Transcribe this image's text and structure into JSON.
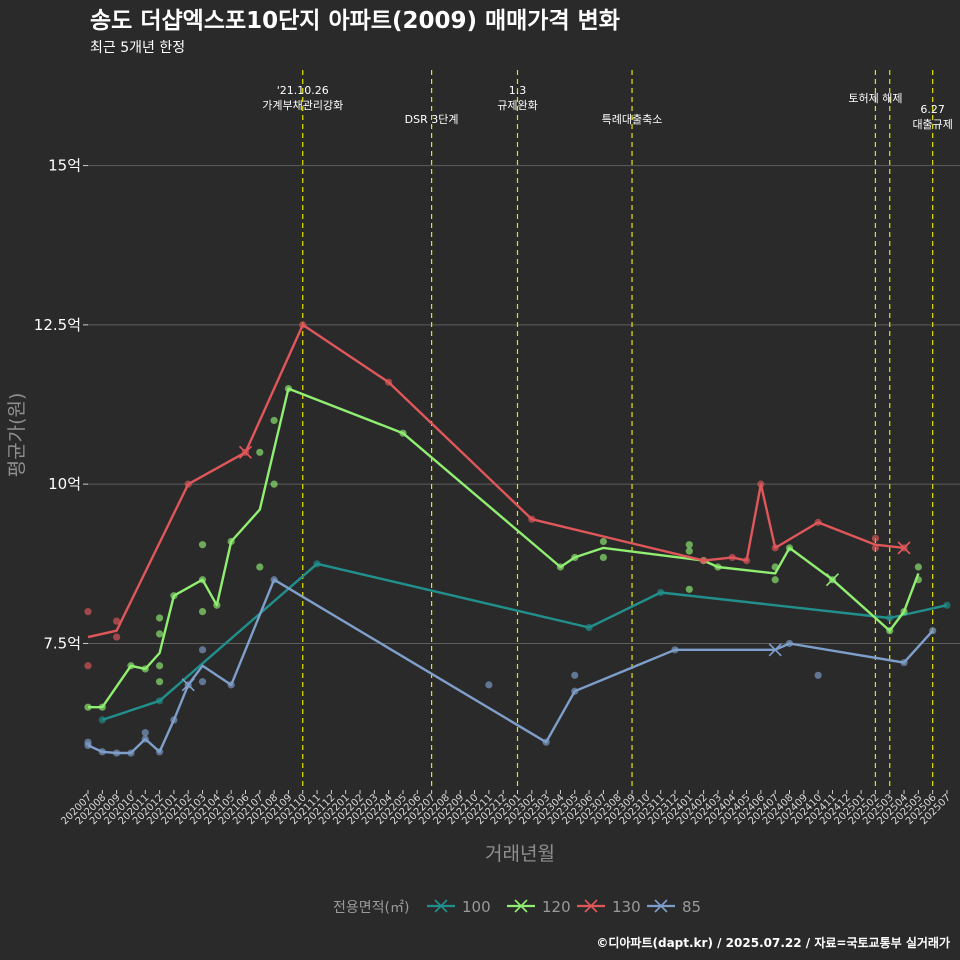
{
  "chart_data": {
    "type": "line",
    "title": "송도 더샵엑스포10단지 아파트(2009) 매매가격 변화",
    "subtitle": "최근 5개년 한정",
    "xlabel": "거래년월",
    "ylabel": "평균가(원)",
    "y_ticks": [
      {
        "value": 7.5,
        "label": "7.5억"
      },
      {
        "value": 10,
        "label": "10억"
      },
      {
        "value": 12.5,
        "label": "12.5억"
      },
      {
        "value": 15,
        "label": "15억"
      }
    ],
    "ylim": [
      5.2,
      16.5
    ],
    "grid": true,
    "x_categories": [
      "202007",
      "202008",
      "202009",
      "202010",
      "202011",
      "202012",
      "202101",
      "202102",
      "202103",
      "202104",
      "202105",
      "202106",
      "202107",
      "202108",
      "202109",
      "202110",
      "202111",
      "202112",
      "202201",
      "202202",
      "202203",
      "202204",
      "202205",
      "202206",
      "202207",
      "202208",
      "202209",
      "202210",
      "202211",
      "202212",
      "202301",
      "202302",
      "202303",
      "202304",
      "202305",
      "202306",
      "202307",
      "202308",
      "202309",
      "202310",
      "202311",
      "202312",
      "202401",
      "202402",
      "202403",
      "202404",
      "202405",
      "202406",
      "202407",
      "202408",
      "202409",
      "202410",
      "202411",
      "202412",
      "202501",
      "202502",
      "202503",
      "202504",
      "202505",
      "202506",
      "202507"
    ],
    "legend": {
      "title": "전용면적(㎡)",
      "position": "bottom"
    },
    "series": [
      {
        "name": "100",
        "color": "#21908c",
        "line": [
          [
            "202008",
            6.3
          ],
          [
            "202012",
            6.6
          ],
          [
            "202111",
            8.75
          ],
          [
            "202306",
            7.75
          ],
          [
            "202311",
            8.3
          ],
          [
            "202503",
            7.9
          ],
          [
            "202507",
            8.1
          ]
        ],
        "points": [
          [
            "202008",
            6.3
          ],
          [
            "202012",
            6.6
          ],
          [
            "202111",
            8.75
          ],
          [
            "202306",
            7.75
          ],
          [
            "202311",
            8.3
          ],
          [
            "202503",
            7.9
          ],
          [
            "202507",
            8.1
          ]
        ]
      },
      {
        "name": "120",
        "color": "#90ee71",
        "line": [
          [
            "202007",
            6.5
          ],
          [
            "202008",
            6.5
          ],
          [
            "202010",
            7.15
          ],
          [
            "202011",
            7.1
          ],
          [
            "202012",
            7.35
          ],
          [
            "202101",
            8.25
          ],
          [
            "202103",
            8.5
          ],
          [
            "202104",
            8.1
          ],
          [
            "202105",
            9.1
          ],
          [
            "202107",
            9.6
          ],
          [
            "202109",
            11.5
          ],
          [
            "202205",
            10.8
          ],
          [
            "202304",
            8.7
          ],
          [
            "202305",
            8.85
          ],
          [
            "202307",
            9.0
          ],
          [
            "202402",
            8.8
          ],
          [
            "202403",
            8.7
          ],
          [
            "202407",
            8.6
          ],
          [
            "202408",
            9.0
          ],
          [
            "202411",
            8.5
          ],
          [
            "202503",
            7.7
          ],
          [
            "202504",
            8.0
          ],
          [
            "202505",
            8.6
          ]
        ],
        "points": [
          [
            "202007",
            6.5
          ],
          [
            "202008",
            6.5
          ],
          [
            "202010",
            7.15
          ],
          [
            "202011",
            7.1
          ],
          [
            "202012",
            6.9
          ],
          [
            "202012",
            7.15
          ],
          [
            "202012",
            7.65
          ],
          [
            "202012",
            7.9
          ],
          [
            "202101",
            8.25
          ],
          [
            "202103",
            8.0
          ],
          [
            "202103",
            8.5
          ],
          [
            "202103",
            9.05
          ],
          [
            "202104",
            8.1
          ],
          [
            "202105",
            9.1
          ],
          [
            "202107",
            8.7
          ],
          [
            "202107",
            10.5
          ],
          [
            "202108",
            10.0
          ],
          [
            "202108",
            11.0
          ],
          [
            "202109",
            11.5
          ],
          [
            "202205",
            10.8
          ],
          [
            "202304",
            8.7
          ],
          [
            "202305",
            8.85
          ],
          [
            "202307",
            8.85
          ],
          [
            "202307",
            9.1
          ],
          [
            "202401",
            8.35
          ],
          [
            "202401",
            8.95
          ],
          [
            "202401",
            9.05
          ],
          [
            "202402",
            8.8
          ],
          [
            "202403",
            8.7
          ],
          [
            "202407",
            8.5
          ],
          [
            "202407",
            8.7
          ],
          [
            "202408",
            9.0
          ],
          [
            "202411",
            8.5
          ],
          [
            "202503",
            7.7
          ],
          [
            "202504",
            8.0
          ],
          [
            "202505",
            8.5
          ],
          [
            "202505",
            8.7
          ]
        ],
        "crosses": [
          [
            "202411",
            8.5
          ]
        ]
      },
      {
        "name": "130",
        "color": "#e0575a",
        "line": [
          [
            "202007",
            7.6
          ],
          [
            "202009",
            7.7
          ],
          [
            "202102",
            10.0
          ],
          [
            "202106",
            10.5
          ],
          [
            "202110",
            12.5
          ],
          [
            "202204",
            11.6
          ],
          [
            "202302",
            9.45
          ],
          [
            "202402",
            8.8
          ],
          [
            "202404",
            8.85
          ],
          [
            "202405",
            8.8
          ],
          [
            "202406",
            10.0
          ],
          [
            "202407",
            9.0
          ],
          [
            "202410",
            9.4
          ],
          [
            "202502",
            9.05
          ],
          [
            "202504",
            9.0
          ]
        ],
        "points": [
          [
            "202007",
            7.15
          ],
          [
            "202007",
            8.0
          ],
          [
            "202009",
            7.6
          ],
          [
            "202009",
            7.85
          ],
          [
            "202102",
            10.0
          ],
          [
            "202106",
            10.5
          ],
          [
            "202110",
            12.5
          ],
          [
            "202204",
            11.6
          ],
          [
            "202302",
            9.45
          ],
          [
            "202402",
            8.8
          ],
          [
            "202404",
            8.85
          ],
          [
            "202405",
            8.8
          ],
          [
            "202406",
            10.0
          ],
          [
            "202407",
            9.0
          ],
          [
            "202410",
            9.4
          ],
          [
            "202502",
            9.0
          ],
          [
            "202502",
            9.15
          ],
          [
            "202504",
            9.0
          ]
        ],
        "crosses": [
          [
            "202106",
            10.5
          ],
          [
            "202504",
            9.0
          ]
        ]
      },
      {
        "name": "85",
        "color": "#7f9fcb",
        "line": [
          [
            "202007",
            5.9
          ],
          [
            "202008",
            5.8
          ],
          [
            "202009",
            5.78
          ],
          [
            "202010",
            5.78
          ],
          [
            "202011",
            6.0
          ],
          [
            "202012",
            5.8
          ],
          [
            "202101",
            6.3
          ],
          [
            "202102",
            6.85
          ],
          [
            "202103",
            7.15
          ],
          [
            "202105",
            6.85
          ],
          [
            "202108",
            8.5
          ],
          [
            "202303",
            5.95
          ],
          [
            "202305",
            6.75
          ],
          [
            "202312",
            7.4
          ],
          [
            "202407",
            7.4
          ],
          [
            "202408",
            7.5
          ],
          [
            "202504",
            7.2
          ],
          [
            "202506",
            7.7
          ]
        ],
        "points": [
          [
            "202007",
            5.9
          ],
          [
            "202007",
            5.95
          ],
          [
            "202008",
            5.8
          ],
          [
            "202009",
            5.78
          ],
          [
            "202010",
            5.78
          ],
          [
            "202011",
            6.0
          ],
          [
            "202011",
            6.1
          ],
          [
            "202012",
            5.8
          ],
          [
            "202101",
            6.3
          ],
          [
            "202102",
            6.85
          ],
          [
            "202103",
            6.9
          ],
          [
            "202103",
            7.4
          ],
          [
            "202105",
            6.85
          ],
          [
            "202108",
            8.5
          ],
          [
            "202211",
            6.85
          ],
          [
            "202303",
            5.95
          ],
          [
            "202305",
            6.75
          ],
          [
            "202305",
            7.0
          ],
          [
            "202312",
            7.4
          ],
          [
            "202408",
            7.5
          ],
          [
            "202410",
            7.0
          ],
          [
            "202504",
            7.2
          ],
          [
            "202506",
            7.7
          ]
        ],
        "crosses": [
          [
            "202102",
            6.85
          ],
          [
            "202407",
            7.4
          ]
        ]
      }
    ],
    "events": [
      {
        "x": "202110",
        "lines": [
          "'21.10.26",
          "가계부채관리강화"
        ],
        "level": "high"
      },
      {
        "x": "202207",
        "lines": [
          "DSR 3단계"
        ],
        "level": "low"
      },
      {
        "x": "202301",
        "lines": [
          "1.3",
          "규제완화"
        ],
        "level": "high"
      },
      {
        "x": "202309",
        "lines": [
          "특례대출축소"
        ],
        "level": "low"
      },
      {
        "x": "202502",
        "lines": [
          "토허제 해제"
        ],
        "level": "mid"
      },
      {
        "x": "202503",
        "lines": [],
        "level": "none"
      },
      {
        "x": "202506",
        "lines": [
          "6.27",
          "대출규제"
        ],
        "level": "mid2"
      }
    ],
    "event_line_color": "#e5e500",
    "footer": "©디아파트(dapt.kr) / 2025.07.22 / 자료=국토교통부 실거래가"
  }
}
